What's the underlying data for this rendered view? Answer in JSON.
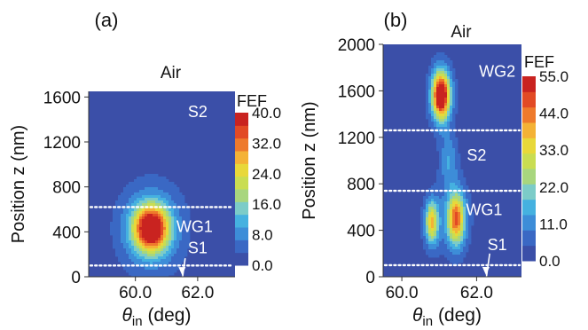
{
  "colormap": [
    "#3b4fa8",
    "#3a68c4",
    "#3d8dd8",
    "#45b1e0",
    "#7cccc8",
    "#a8d67e",
    "#c9dd52",
    "#e8d83a",
    "#f4b236",
    "#ee7a2c",
    "#e24a25",
    "#c92320"
  ],
  "chart_data": [
    {
      "type": "heatmap",
      "panel_label": "(a)",
      "top_label": "Air",
      "xlabel_symbol": "θ",
      "xlabel_sub": "in",
      "xlabel_unit": " (deg)",
      "ylabel": "Position z (nm)",
      "xlim": [
        58.5,
        63.2
      ],
      "ylim": [
        0,
        1650
      ],
      "xticks": [
        60.0,
        62.0
      ],
      "xtick_labels": [
        "60.0",
        "62.0"
      ],
      "yticks": [
        0,
        400,
        800,
        1200,
        1600
      ],
      "ytick_labels": [
        "0",
        "400",
        "800",
        "1200",
        "1600"
      ],
      "colorbar_title": "FEF",
      "clim": [
        0,
        40
      ],
      "colorbar_ticks": [
        "40.0",
        "32.0",
        "24.0",
        "16.0",
        "8.0",
        "0.0"
      ],
      "colorbar_tick_values": [
        40,
        32,
        24,
        16,
        8,
        0
      ],
      "interfaces_z": [
        620,
        100
      ],
      "regions": [
        {
          "label": "S2",
          "x": 62.0,
          "z": 1420
        },
        {
          "label": "WG1",
          "x": 61.9,
          "z": 400
        },
        {
          "label": "S1",
          "x": 62.0,
          "z": 210
        }
      ],
      "arrow": {
        "from": [
          61.6,
          165
        ],
        "to": [
          61.5,
          15
        ]
      },
      "hotspots": [
        {
          "x": 60.5,
          "z": 430,
          "peak": 40,
          "sx": 0.55,
          "sz": 200,
          "rot": -0.5
        },
        {
          "x": 60.5,
          "z": 430,
          "peak": 10,
          "sx": 1.2,
          "sz": 450,
          "rot": -0.5
        }
      ]
    },
    {
      "type": "heatmap",
      "panel_label": "(b)",
      "top_label": "Air",
      "xlabel_symbol": "θ",
      "xlabel_sub": "in",
      "xlabel_unit": " (deg)",
      "ylabel": "Position z (nm)",
      "xlim": [
        59.5,
        63.2
      ],
      "ylim": [
        0,
        2000
      ],
      "xticks": [
        60.0,
        62.0
      ],
      "xtick_labels": [
        "60.0",
        "62.0"
      ],
      "yticks": [
        0,
        400,
        800,
        1200,
        1600,
        2000
      ],
      "ytick_labels": [
        "0",
        "400",
        "800",
        "1200",
        "1600",
        "2000"
      ],
      "colorbar_title": "FEF",
      "clim": [
        0,
        55
      ],
      "colorbar_ticks": [
        "55.0",
        "44.0",
        "33.0",
        "22.0",
        "11.0",
        "0.0"
      ],
      "colorbar_tick_values": [
        55,
        44,
        33,
        22,
        11,
        0
      ],
      "interfaces_z": [
        1260,
        740,
        100
      ],
      "regions": [
        {
          "label": "WG2",
          "x": 62.55,
          "z": 1720
        },
        {
          "label": "S2",
          "x": 62.0,
          "z": 1000
        },
        {
          "label": "WG1",
          "x": 62.2,
          "z": 530
        },
        {
          "label": "S1",
          "x": 62.55,
          "z": 230
        }
      ],
      "arrow": {
        "from": [
          62.35,
          200
        ],
        "to": [
          62.25,
          15
        ]
      },
      "hotspots": [
        {
          "x": 61.05,
          "z": 1560,
          "peak": 55,
          "sx": 0.22,
          "sz": 190,
          "rot": 0
        },
        {
          "x": 61.05,
          "z": 1560,
          "peak": 12,
          "sx": 0.4,
          "sz": 330,
          "rot": 0
        },
        {
          "x": 61.45,
          "z": 500,
          "peak": 38,
          "sx": 0.22,
          "sz": 210,
          "rot": 0
        },
        {
          "x": 61.45,
          "z": 500,
          "peak": 10,
          "sx": 0.45,
          "sz": 380,
          "rot": 0
        },
        {
          "x": 60.8,
          "z": 470,
          "peak": 30,
          "sx": 0.16,
          "sz": 170,
          "rot": 0
        },
        {
          "x": 60.8,
          "z": 470,
          "peak": 8,
          "sx": 0.35,
          "sz": 300,
          "rot": 0
        },
        {
          "x": 61.25,
          "z": 1000,
          "peak": 12,
          "sx": 0.25,
          "sz": 230,
          "rot": 0
        }
      ]
    }
  ]
}
